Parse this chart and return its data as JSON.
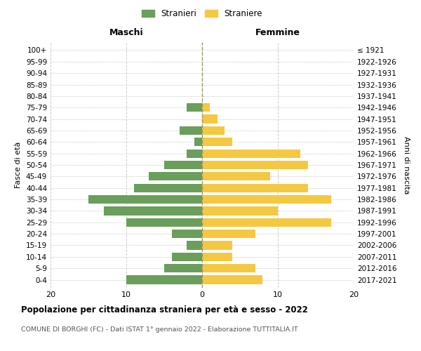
{
  "age_groups": [
    "0-4",
    "5-9",
    "10-14",
    "15-19",
    "20-24",
    "25-29",
    "30-34",
    "35-39",
    "40-44",
    "45-49",
    "50-54",
    "55-59",
    "60-64",
    "65-69",
    "70-74",
    "75-79",
    "80-84",
    "85-89",
    "90-94",
    "95-99",
    "100+"
  ],
  "birth_years": [
    "2017-2021",
    "2012-2016",
    "2007-2011",
    "2002-2006",
    "1997-2001",
    "1992-1996",
    "1987-1991",
    "1982-1986",
    "1977-1981",
    "1972-1976",
    "1967-1971",
    "1962-1966",
    "1957-1961",
    "1952-1956",
    "1947-1951",
    "1942-1946",
    "1937-1941",
    "1932-1936",
    "1927-1931",
    "1922-1926",
    "≤ 1921"
  ],
  "males": [
    10,
    5,
    4,
    2,
    4,
    10,
    13,
    15,
    9,
    7,
    5,
    2,
    1,
    3,
    0,
    2,
    0,
    0,
    0,
    0,
    0
  ],
  "females": [
    8,
    7,
    4,
    4,
    7,
    17,
    10,
    17,
    14,
    9,
    14,
    13,
    4,
    3,
    2,
    1,
    0,
    0,
    0,
    0,
    0
  ],
  "male_color": "#6a9e5b",
  "female_color": "#f5c842",
  "male_label": "Stranieri",
  "female_label": "Straniere",
  "title": "Popolazione per cittadinanza straniera per età e sesso - 2022",
  "subtitle": "COMUNE DI BORGHI (FC) - Dati ISTAT 1° gennaio 2022 - Elaborazione TUTTITALIA.IT",
  "xlabel_left": "Maschi",
  "xlabel_right": "Femmine",
  "ylabel_left": "Fasce di età",
  "ylabel_right": "Anni di nascita",
  "xlim": 20,
  "background_color": "#ffffff",
  "grid_color": "#cccccc"
}
